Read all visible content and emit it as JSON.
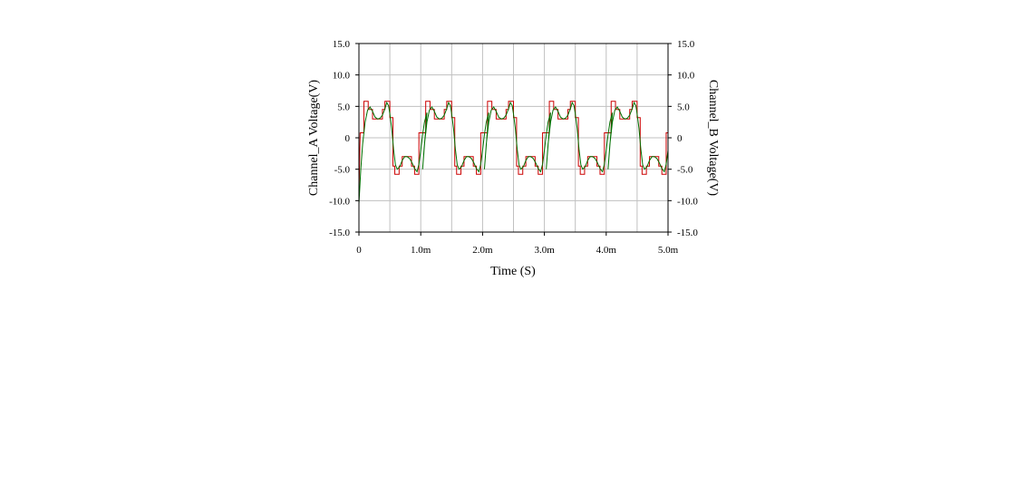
{
  "chart_data": {
    "type": "line",
    "xlabel": "Time (S)",
    "ylabel_left": "Channel_A Voltage(V)",
    "ylabel_right": "Channel_B Voltage(V)",
    "xlim": [
      0,
      0.005
    ],
    "ylim": [
      -15,
      15
    ],
    "y_ticks": [
      15,
      10,
      5,
      0,
      -5,
      -10,
      -15
    ],
    "y_tick_labels": [
      "15.0",
      "10.0",
      "5.0",
      "0",
      "-5.0",
      "-10.0",
      "-15.0"
    ],
    "x_ticks": [
      0,
      0.001,
      0.002,
      0.003,
      0.004,
      0.005
    ],
    "x_tick_labels": [
      "0",
      "1.0m",
      "2.0m",
      "3.0m",
      "4.0m",
      "5.0m"
    ],
    "grid": true,
    "period": 0.001,
    "series": [
      {
        "color": "#cc0000",
        "style": "step",
        "points": [
          [
            0,
            -9
          ],
          [
            2e-05,
            0.8
          ],
          [
            8e-05,
            0.8
          ],
          [
            8e-05,
            5.8
          ],
          [
            0.00015,
            5.8
          ],
          [
            0.00015,
            4.5
          ],
          [
            0.00022,
            4.5
          ],
          [
            0.00022,
            3.0
          ],
          [
            0.00038,
            3.0
          ],
          [
            0.00038,
            4.5
          ],
          [
            0.00042,
            4.5
          ],
          [
            0.00042,
            5.8
          ],
          [
            0.0005,
            5.8
          ],
          [
            0.0005,
            3.2
          ],
          [
            0.00055,
            3.2
          ],
          [
            0.00055,
            -4.5
          ],
          [
            0.00058,
            -4.5
          ],
          [
            0.00058,
            -5.8
          ],
          [
            0.00065,
            -5.8
          ],
          [
            0.00065,
            -4.5
          ],
          [
            0.0007,
            -4.5
          ],
          [
            0.0007,
            -3.0
          ],
          [
            0.00085,
            -3.0
          ],
          [
            0.00085,
            -4.5
          ],
          [
            0.0009,
            -4.5
          ],
          [
            0.0009,
            -5.8
          ],
          [
            0.00097,
            -5.8
          ],
          [
            0.00097,
            0.8
          ],
          [
            0.00108,
            0.8
          ]
        ]
      },
      {
        "color": "#007000",
        "style": "line",
        "points": [
          [
            0,
            -10.5
          ],
          [
            3e-05,
            -5
          ],
          [
            6e-05,
            -1
          ],
          [
            0.0001,
            2.5
          ],
          [
            0.00014,
            4.4
          ],
          [
            0.00018,
            4.9
          ],
          [
            0.00022,
            4.2
          ],
          [
            0.00026,
            3.3
          ],
          [
            0.0003,
            3.0
          ],
          [
            0.00034,
            3.1
          ],
          [
            0.00038,
            3.6
          ],
          [
            0.00042,
            4.6
          ],
          [
            0.00045,
            5.6
          ],
          [
            0.00048,
            5.1
          ],
          [
            0.0005,
            3.8
          ],
          [
            0.00053,
            1.5
          ],
          [
            0.00056,
            -1.8
          ],
          [
            0.00059,
            -4.3
          ],
          [
            0.00062,
            -5.0
          ],
          [
            0.00066,
            -4.6
          ],
          [
            0.0007,
            -3.6
          ],
          [
            0.00074,
            -3.0
          ],
          [
            0.00078,
            -3.0
          ],
          [
            0.00082,
            -3.3
          ],
          [
            0.00086,
            -4.0
          ],
          [
            0.0009,
            -4.9
          ],
          [
            0.00094,
            -5.4
          ],
          [
            0.00097,
            -4.2
          ],
          [
            0.001,
            -2.0
          ],
          [
            0.00103,
            0.5
          ],
          [
            0.00106,
            2.5
          ],
          [
            0.0011,
            4.0
          ]
        ]
      }
    ]
  }
}
